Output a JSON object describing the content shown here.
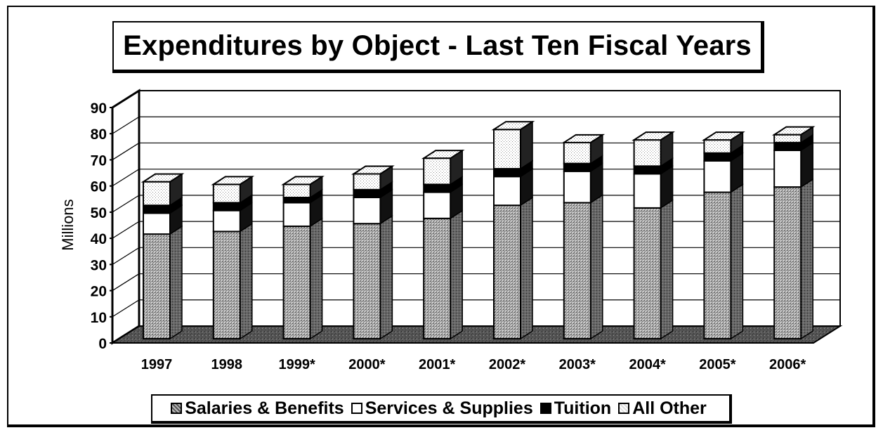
{
  "chart_data": {
    "type": "bar",
    "stacked": true,
    "title": "Expenditures by Object - Last Ten Fiscal Years",
    "ylabel": "Millions",
    "xlabel": "",
    "ylim": [
      0,
      90
    ],
    "yticks": [
      "0",
      "10",
      "20",
      "30",
      "40",
      "50",
      "60",
      "70",
      "80",
      "90"
    ],
    "categories": [
      "1997",
      "1998",
      "1999*",
      "2000*",
      "2001*",
      "2002*",
      "2003*",
      "2004*",
      "2005*",
      "2006*"
    ],
    "series": [
      {
        "name": "Salaries & Benefits",
        "values": [
          40,
          41,
          43,
          44,
          46,
          51,
          52,
          50,
          56,
          58
        ],
        "color": "#9a9a9a"
      },
      {
        "name": "Services & Supplies",
        "values": [
          8,
          8,
          9,
          10,
          10,
          11,
          12,
          13,
          12,
          14
        ],
        "color": "#ffffff"
      },
      {
        "name": "Tuition",
        "values": [
          3,
          3,
          2,
          3,
          3,
          3,
          3,
          3,
          3,
          3
        ],
        "color": "#000000"
      },
      {
        "name": "All Other",
        "values": [
          9,
          7,
          5,
          6,
          10,
          15,
          8,
          10,
          5,
          3
        ],
        "color": "#e6e6e6"
      }
    ],
    "grid": true,
    "legend_position": "bottom",
    "style": "3d"
  }
}
